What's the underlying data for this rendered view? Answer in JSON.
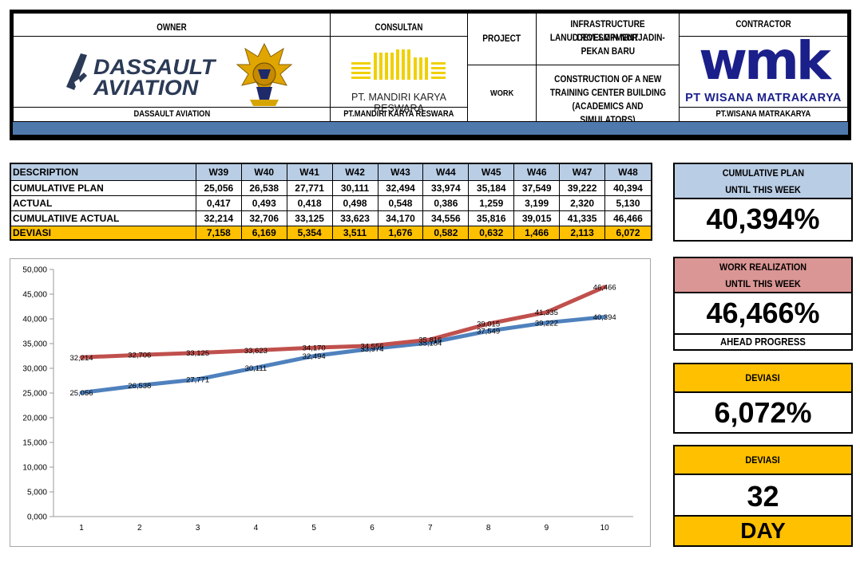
{
  "header": {
    "owner_title": "OWNER",
    "owner_logo_text_1": "DASSAULT",
    "owner_logo_text_2": "AVIATION",
    "owner_footer": "DASSAULT AVIATION",
    "consultant_title": "CONSULTAN",
    "consultant_logo_text": "PT. MANDIRI KARYA RESWARA",
    "consultant_footer": "PT.MANDIRI KARYA RESWARA",
    "project_label": "PROJECT",
    "project_value_1": "INFRASTRUCTURE DEVELOPMENT",
    "project_value_2": "LANUD ROESMIN NURJADIN-",
    "project_value_3": "PEKAN BARU",
    "work_label": "WORK",
    "work_value_1": "CONSTRUCTION OF A NEW",
    "work_value_2": "TRAINING CENTER BUILDING",
    "work_value_3": "(ACADEMICS AND SIMULATORS)",
    "contractor_title": "CONTRACTOR",
    "contractor_logo_text": "wmk",
    "contractor_logo_name": "PT WISANA MATRAKARYA",
    "contractor_footer": "PT.WISANA MATRAKARYA",
    "colors": {
      "band": "#4f79ad",
      "dassault": "#2b3a56",
      "mandiri": "#f0d000",
      "wmk": "#1b1f8a"
    }
  },
  "table": {
    "columns": [
      "DESCRIPTION",
      "W39",
      "W40",
      "W41",
      "W42",
      "W43",
      "W44",
      "W45",
      "W46",
      "W47",
      "W48"
    ],
    "rows": [
      {
        "label": "CUMULATIVE PLAN",
        "values": [
          "25,056",
          "26,538",
          "27,771",
          "30,111",
          "32,494",
          "33,974",
          "35,184",
          "37,549",
          "39,222",
          "40,394"
        ]
      },
      {
        "label": "ACTUAL",
        "values": [
          "0,417",
          "0,493",
          "0,418",
          "0,498",
          "0,548",
          "0,386",
          "1,259",
          "3,199",
          "2,320",
          "5,130"
        ]
      },
      {
        "label": "CUMULATIIVE ACTUAL",
        "values": [
          "32,214",
          "32,706",
          "33,125",
          "33,623",
          "34,170",
          "34,556",
          "35,816",
          "39,015",
          "41,335",
          "46,466"
        ]
      },
      {
        "label": "DEVIASI",
        "values": [
          "7,158",
          "6,169",
          "5,354",
          "3,511",
          "1,676",
          "0,582",
          "0,632",
          "1,466",
          "2,113",
          "6,072"
        ]
      }
    ],
    "colors": {
      "header": "#b9cde5",
      "deviasi": "#ffc000"
    }
  },
  "panels": {
    "plan_label_1": "CUMULATIVE PLAN",
    "plan_label_2": "UNTIL THIS WEEK",
    "plan_value": "40,394%",
    "real_label_1": "WORK REALIZATION",
    "real_label_2": "UNTIL THIS WEEK",
    "real_value": "46,466%",
    "real_status": "AHEAD PROGRESS",
    "dev_label": "DEVIASI",
    "dev_value": "6,072%",
    "day_label": "DEVIASI",
    "day_value": "32",
    "day_unit": "DAY",
    "colors": {
      "plan": "#b9cde5",
      "real": "#da9694",
      "dev": "#ffc000"
    }
  },
  "chart_data": {
    "type": "line",
    "x": [
      1,
      2,
      3,
      4,
      5,
      6,
      7,
      8,
      9,
      10
    ],
    "ylim": [
      0,
      50
    ],
    "yticks": [
      "0,000",
      "5,000",
      "10,000",
      "15,000",
      "20,000",
      "25,000",
      "30,000",
      "35,000",
      "40,000",
      "45,000",
      "50,000"
    ],
    "grid": false,
    "legend": "none",
    "series": [
      {
        "color": "#4f81bd",
        "values": [
          25.056,
          26.538,
          27.771,
          30.111,
          32.494,
          33.974,
          35.184,
          37.549,
          39.222,
          40.394
        ],
        "labels": [
          "25,056",
          "26,538",
          "27,771",
          "30,111",
          "32,494",
          "33,974",
          "35,184",
          "37,549",
          "39,222",
          "40,394"
        ]
      },
      {
        "color": "#c0504d",
        "values": [
          32.214,
          32.706,
          33.125,
          33.623,
          34.17,
          34.556,
          35.816,
          39.015,
          41.335,
          46.466
        ],
        "labels": [
          "32,214",
          "32,706",
          "33,125",
          "33,623",
          "34,170",
          "34,556",
          "35,816",
          "39,015",
          "41,335",
          "46,466"
        ]
      }
    ]
  }
}
